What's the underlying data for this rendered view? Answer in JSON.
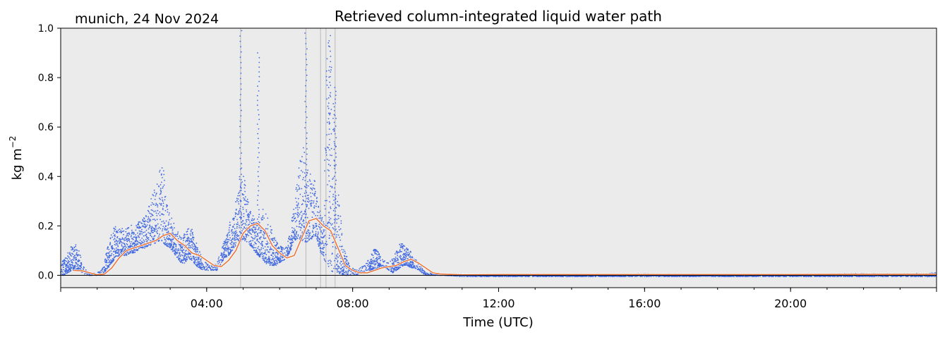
{
  "figure": {
    "location_date": "munich, 24 Nov 2024"
  },
  "chart_data": {
    "type": "scatter",
    "title": "Retrieved column-integrated liquid water path",
    "xlabel": "Time (UTC)",
    "ylabel": "kg m",
    "ylabel_superscript": "−2",
    "xlim_hours": [
      0,
      24
    ],
    "ylim": [
      -0.05,
      1.0
    ],
    "x_ticks": [
      {
        "hour": 4,
        "label": "04:00"
      },
      {
        "hour": 8,
        "label": "08:00"
      },
      {
        "hour": 12,
        "label": "12:00"
      },
      {
        "hour": 16,
        "label": "16:00"
      },
      {
        "hour": 20,
        "label": "20:00"
      }
    ],
    "y_ticks": [
      {
        "value": 0.0,
        "label": "0.0"
      },
      {
        "value": 0.2,
        "label": "0.2"
      },
      {
        "value": 0.4,
        "label": "0.4"
      },
      {
        "value": 0.6,
        "label": "0.6"
      },
      {
        "value": 0.8,
        "label": "0.8"
      },
      {
        "value": 1.0,
        "label": "1.0"
      }
    ],
    "grid": false,
    "background_color": "#ebebeb",
    "zero_line": 0.0,
    "flag_lines_hours": [
      4.93,
      6.72,
      7.12,
      7.27,
      7.52
    ],
    "series": [
      {
        "role": "raw-retrieval",
        "style": "dots",
        "color": "#4169e1",
        "x": [
          0.0,
          0.1,
          0.2,
          0.3,
          0.4,
          0.5,
          0.6,
          0.7,
          0.8,
          0.9,
          1.0,
          1.1,
          1.2,
          1.3,
          1.4,
          1.5,
          1.6,
          1.7,
          1.8,
          1.9,
          2.0,
          2.1,
          2.2,
          2.3,
          2.4,
          2.5,
          2.6,
          2.7,
          2.8,
          2.9,
          3.0,
          3.1,
          3.2,
          3.3,
          3.4,
          3.5,
          3.6,
          3.7,
          3.8,
          3.9,
          4.0,
          4.1,
          4.2,
          4.3,
          4.4,
          4.5,
          4.6,
          4.7,
          4.8,
          4.9,
          5.0,
          5.1,
          5.2,
          5.3,
          5.4,
          5.5,
          5.6,
          5.7,
          5.8,
          5.9,
          6.0,
          6.1,
          6.2,
          6.3,
          6.4,
          6.5,
          6.6,
          6.7,
          6.8,
          6.9,
          7.0,
          7.1,
          7.2,
          7.3,
          7.4,
          7.5,
          7.6,
          7.7,
          7.8,
          7.9,
          8.0,
          8.1,
          8.2,
          8.3,
          8.4,
          8.5,
          8.6,
          8.7,
          8.8,
          8.9,
          9.0,
          9.1,
          9.2,
          9.3,
          9.4,
          9.5,
          9.6,
          9.7,
          9.8,
          9.9,
          10.0,
          10.1,
          10.2,
          10.3,
          10.4,
          10.5,
          11,
          12,
          13,
          14,
          15,
          16,
          17,
          18,
          19,
          20,
          21,
          22,
          23,
          24
        ],
        "y_low": [
          0.0,
          0.0,
          0.01,
          0.02,
          0.02,
          0.02,
          0.01,
          0.0,
          0.0,
          0.0,
          0.0,
          0.0,
          0.01,
          0.03,
          0.05,
          0.07,
          0.08,
          0.08,
          0.08,
          0.09,
          0.09,
          0.1,
          0.11,
          0.11,
          0.12,
          0.12,
          0.13,
          0.14,
          0.13,
          0.12,
          0.11,
          0.09,
          0.07,
          0.05,
          0.05,
          0.07,
          0.06,
          0.04,
          0.03,
          0.02,
          0.02,
          0.02,
          0.02,
          0.02,
          0.05,
          0.07,
          0.08,
          0.1,
          0.12,
          0.13,
          0.15,
          0.13,
          0.12,
          0.1,
          0.08,
          0.07,
          0.05,
          0.04,
          0.04,
          0.04,
          0.05,
          0.06,
          0.07,
          0.1,
          0.14,
          0.15,
          0.14,
          0.13,
          0.14,
          0.15,
          0.16,
          0.1,
          0.07,
          0.04,
          0.02,
          0.01,
          0.01,
          0.0,
          0.0,
          0.0,
          0.0,
          0.0,
          0.01,
          0.01,
          0.02,
          0.02,
          0.02,
          0.03,
          0.03,
          0.03,
          0.02,
          0.01,
          0.02,
          0.03,
          0.04,
          0.04,
          0.03,
          0.03,
          0.02,
          0.01,
          0.0,
          0.0,
          0.0,
          0.0,
          0.0,
          0.0,
          -0.005,
          -0.005,
          -0.005,
          -0.005,
          -0.005,
          -0.005,
          -0.005,
          -0.005,
          -0.005,
          -0.005,
          -0.005,
          -0.005,
          -0.005,
          -0.005
        ],
        "y_high": [
          0.03,
          0.08,
          0.1,
          0.12,
          0.13,
          0.1,
          0.05,
          0.02,
          0.01,
          0.01,
          0.01,
          0.02,
          0.06,
          0.12,
          0.18,
          0.2,
          0.19,
          0.19,
          0.2,
          0.21,
          0.21,
          0.22,
          0.23,
          0.25,
          0.28,
          0.32,
          0.36,
          0.42,
          0.46,
          0.3,
          0.24,
          0.22,
          0.18,
          0.15,
          0.17,
          0.2,
          0.19,
          0.14,
          0.1,
          0.06,
          0.05,
          0.04,
          0.04,
          0.06,
          0.1,
          0.15,
          0.2,
          0.24,
          0.3,
          0.4,
          0.47,
          0.32,
          0.3,
          0.25,
          0.22,
          0.28,
          0.26,
          0.22,
          0.18,
          0.14,
          0.12,
          0.11,
          0.12,
          0.2,
          0.3,
          0.4,
          0.54,
          0.5,
          0.42,
          0.4,
          0.38,
          0.28,
          0.22,
          0.97,
          0.91,
          0.75,
          0.35,
          0.2,
          0.1,
          0.05,
          0.03,
          0.02,
          0.03,
          0.04,
          0.06,
          0.08,
          0.11,
          0.1,
          0.07,
          0.06,
          0.05,
          0.07,
          0.1,
          0.13,
          0.13,
          0.11,
          0.1,
          0.07,
          0.05,
          0.03,
          0.01,
          0.01,
          0.005,
          0.005,
          0.005,
          0.005,
          0.005,
          0.005,
          0.005,
          0.005,
          0.005,
          0.006,
          0.005,
          0.005,
          0.005,
          0.005,
          0.005,
          0.008,
          0.006,
          0.01
        ],
        "spikes": [
          {
            "hour": 4.93,
            "value": 0.99
          },
          {
            "hour": 5.42,
            "value": 0.9
          },
          {
            "hour": 6.72,
            "value": 0.98
          },
          {
            "hour": 7.37,
            "value": 0.97
          },
          {
            "hour": 7.52,
            "value": 0.76
          }
        ]
      },
      {
        "role": "smoothed-mean",
        "style": "line",
        "color": "#e8763c",
        "x": [
          0.35,
          0.6,
          0.8,
          1.0,
          1.2,
          1.4,
          1.6,
          1.8,
          2.0,
          2.2,
          2.4,
          2.6,
          2.8,
          3.0,
          3.2,
          3.4,
          3.6,
          3.8,
          4.0,
          4.2,
          4.4,
          4.6,
          4.8,
          5.0,
          5.2,
          5.4,
          5.6,
          5.8,
          6.0,
          6.2,
          6.4,
          6.6,
          6.8,
          7.0,
          7.2,
          7.4,
          7.6,
          7.8,
          8.0,
          8.2,
          8.4,
          8.6,
          8.8,
          9.0,
          9.2,
          9.4,
          9.6,
          9.8,
          10.0,
          10.2,
          10.4,
          11,
          12,
          14,
          16,
          18,
          20,
          22,
          24
        ],
        "y": [
          0.02,
          0.018,
          0.01,
          0.002,
          0.005,
          0.03,
          0.07,
          0.1,
          0.11,
          0.12,
          0.13,
          0.14,
          0.16,
          0.17,
          0.14,
          0.12,
          0.09,
          0.08,
          0.06,
          0.04,
          0.035,
          0.06,
          0.1,
          0.17,
          0.2,
          0.21,
          0.18,
          0.12,
          0.09,
          0.07,
          0.08,
          0.15,
          0.22,
          0.23,
          0.2,
          0.18,
          0.11,
          0.04,
          0.02,
          0.01,
          0.01,
          0.02,
          0.03,
          0.035,
          0.04,
          0.055,
          0.065,
          0.05,
          0.03,
          0.01,
          0.005,
          0.002,
          0.003,
          0.003,
          0.003,
          0.003,
          0.003,
          0.004,
          0.004
        ]
      }
    ]
  }
}
